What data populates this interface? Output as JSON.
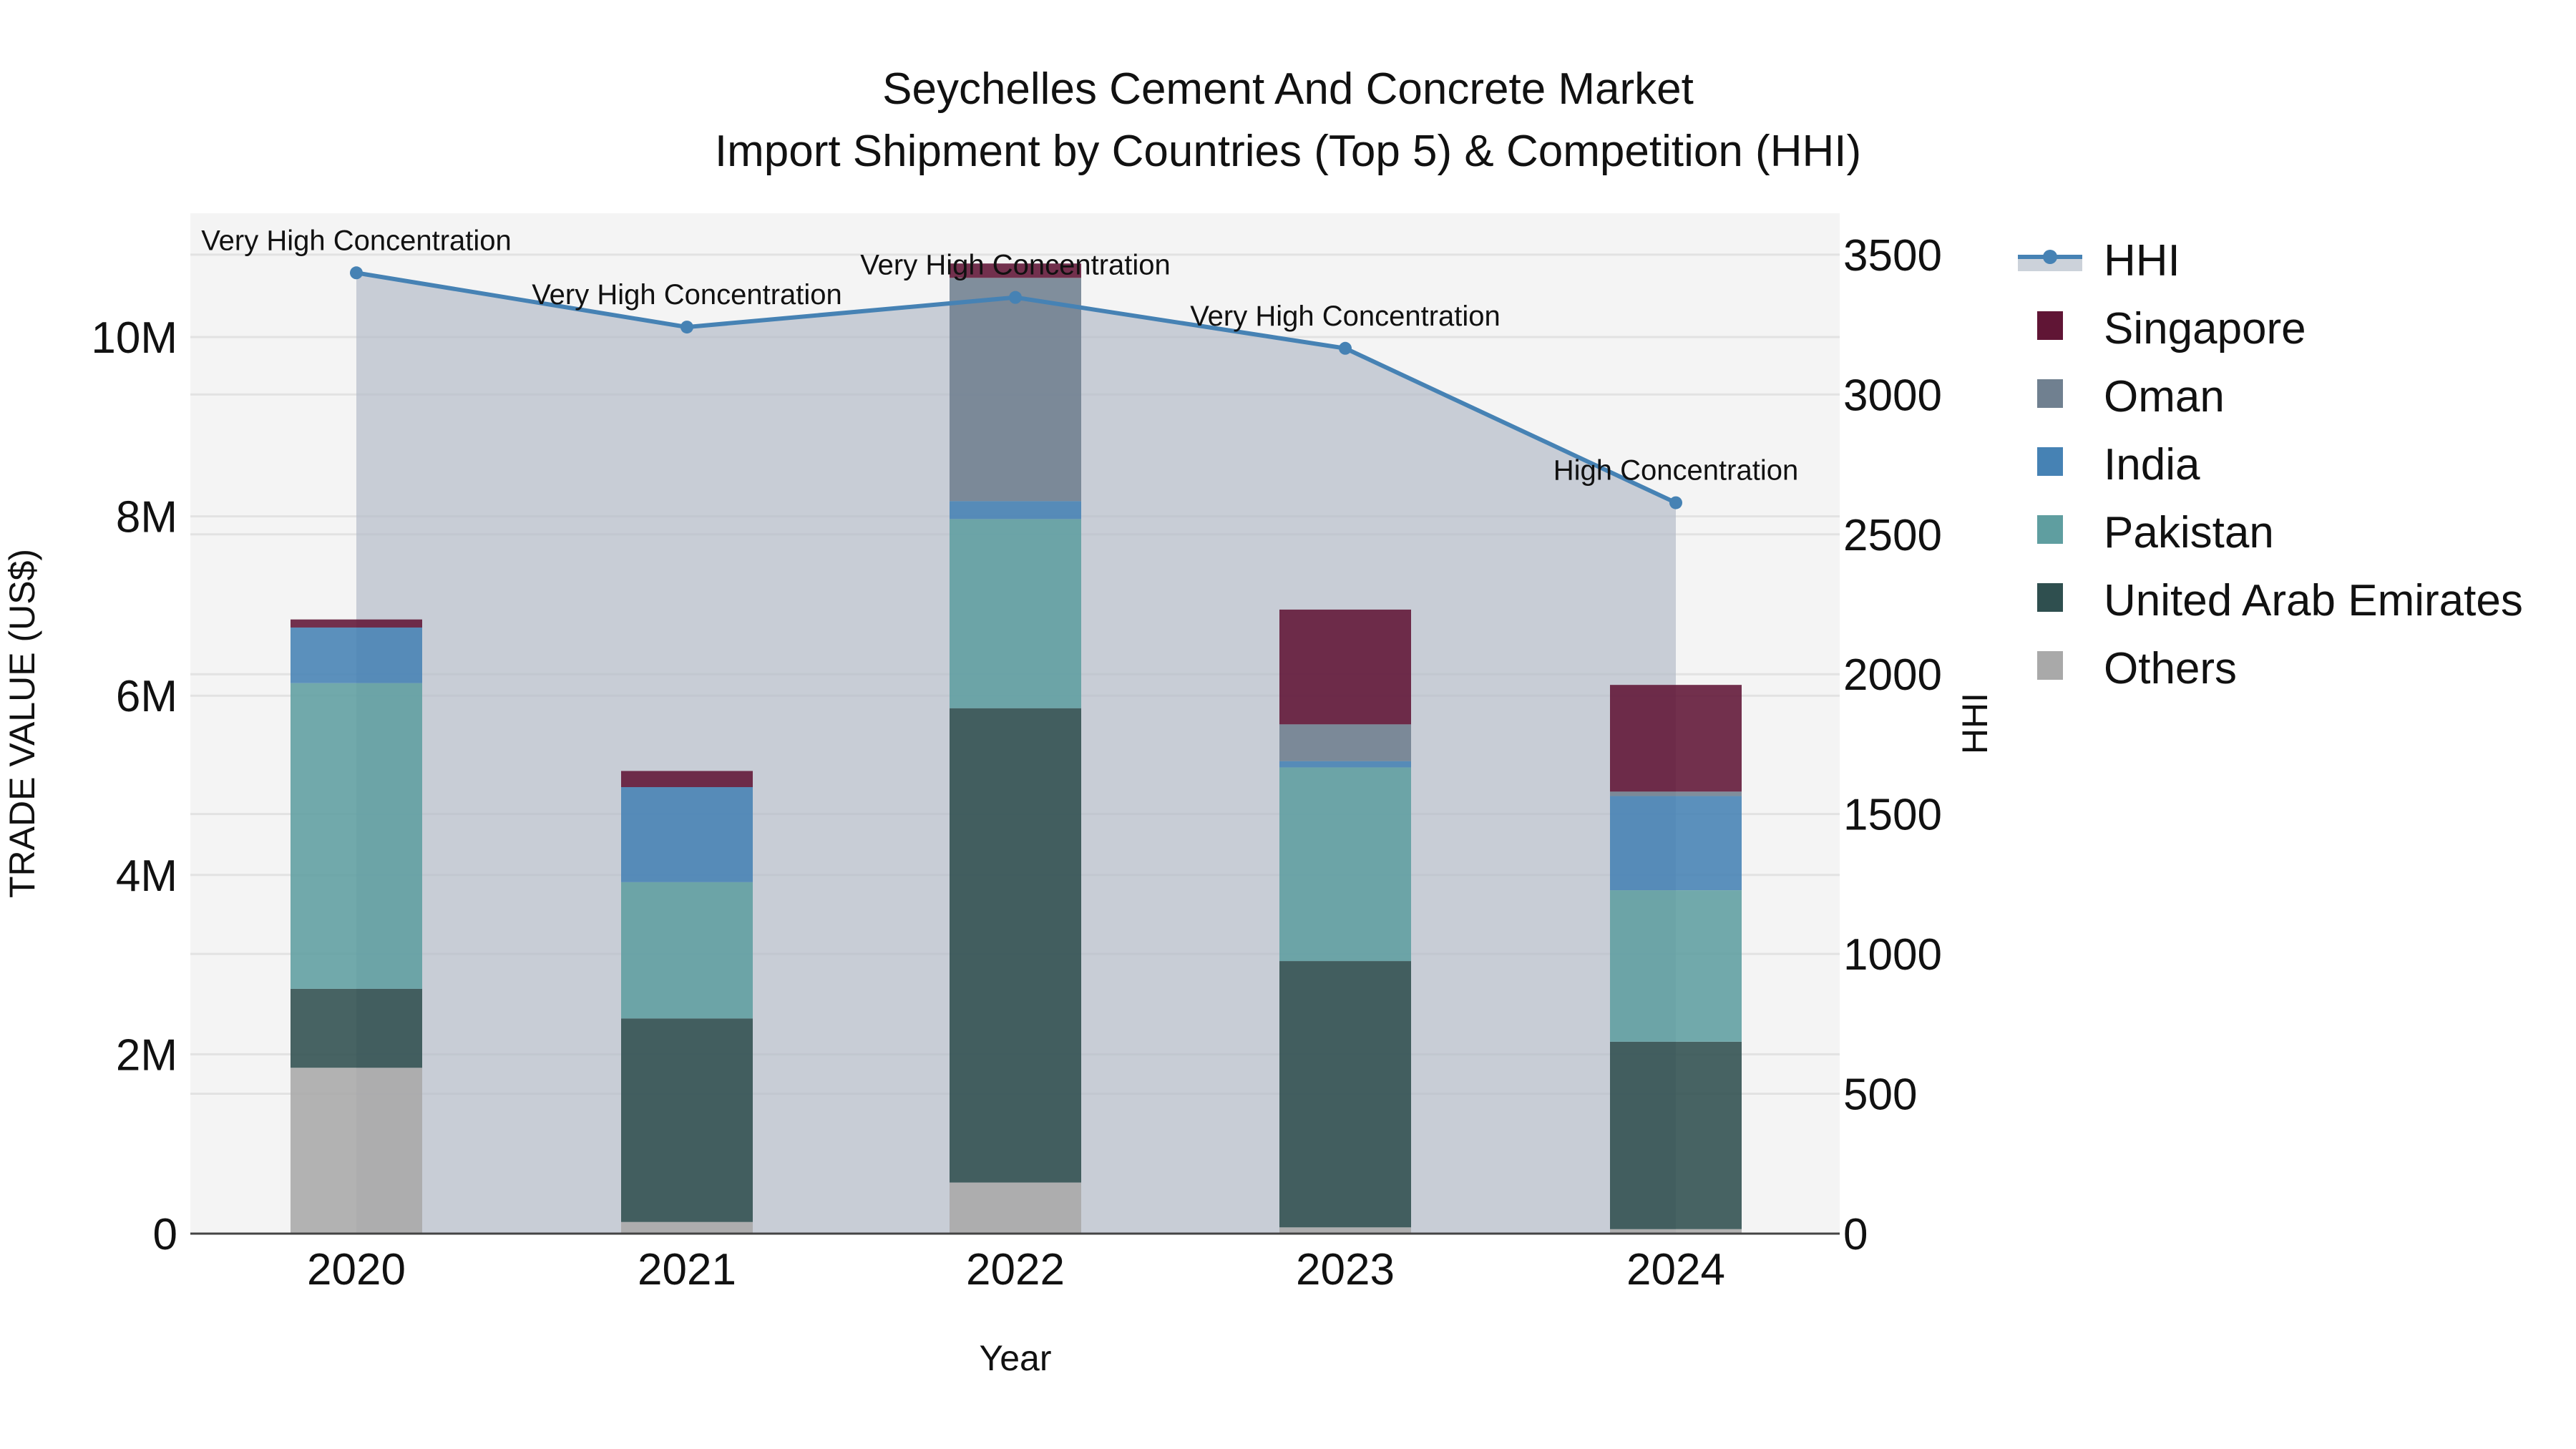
{
  "title": {
    "line1": "Seychelles Cement And Concrete Market",
    "line2": "Import Shipment by Countries (Top 5) & Competition (HHI)"
  },
  "axes": {
    "xlabel": "Year",
    "ylabel_left": "TRADE VALUE (US$)",
    "ylabel_right": "HHI",
    "left_ticks": [
      "0",
      "2M",
      "4M",
      "6M",
      "8M",
      "10M"
    ],
    "right_ticks": [
      "0",
      "500",
      "1000",
      "1500",
      "2000",
      "2500",
      "3000",
      "3500"
    ]
  },
  "legend": [
    {
      "name": "HHI",
      "color": "#4682B4",
      "type": "line"
    },
    {
      "name": "Singapore",
      "color": "#601535",
      "type": "bar"
    },
    {
      "name": "Oman",
      "color": "#708090",
      "type": "bar"
    },
    {
      "name": "India",
      "color": "#4682B4",
      "type": "bar"
    },
    {
      "name": "Pakistan",
      "color": "#5F9EA0",
      "type": "bar"
    },
    {
      "name": "United Arab Emirates",
      "color": "#2F4F4F",
      "type": "bar"
    },
    {
      "name": "Others",
      "color": "#A9A9A9",
      "type": "bar"
    }
  ],
  "chart_data": {
    "type": "bar",
    "title": "Seychelles Cement And Concrete Market — Import Shipment by Countries (Top 5) & Competition (HHI)",
    "xlabel": "Year",
    "ylabel": "TRADE VALUE (US$)",
    "y2label": "HHI",
    "stacked": true,
    "categories": [
      "2020",
      "2021",
      "2022",
      "2023",
      "2024"
    ],
    "ylim": [
      0,
      11400000
    ],
    "y2lim": [
      0,
      3640
    ],
    "series": [
      {
        "name": "Others",
        "color": "#A9A9A9",
        "values": [
          1850000,
          130000,
          570000,
          70000,
          50000
        ]
      },
      {
        "name": "United Arab Emirates",
        "color": "#2F4F4F",
        "values": [
          880000,
          2270000,
          5290000,
          2970000,
          2090000
        ]
      },
      {
        "name": "Pakistan",
        "color": "#5F9EA0",
        "values": [
          3410000,
          1520000,
          2110000,
          2160000,
          1690000
        ]
      },
      {
        "name": "India",
        "color": "#4682B4",
        "values": [
          620000,
          1060000,
          200000,
          70000,
          1050000
        ]
      },
      {
        "name": "Oman",
        "color": "#708090",
        "values": [
          0,
          0,
          2490000,
          410000,
          50000
        ]
      },
      {
        "name": "Singapore",
        "color": "#601535",
        "values": [
          90000,
          180000,
          160000,
          1280000,
          1190000
        ]
      }
    ],
    "line_series": {
      "name": "HHI",
      "axis": "right",
      "color": "#4682B4",
      "fill": "tozeroy",
      "values": [
        3435,
        3241,
        3347,
        3165,
        2613
      ],
      "labels": [
        "Very High Concentration",
        "Very High Concentration",
        "Very High Concentration",
        "Very High Concentration",
        "High Concentration"
      ]
    },
    "grid": true,
    "legend_position": "right"
  }
}
